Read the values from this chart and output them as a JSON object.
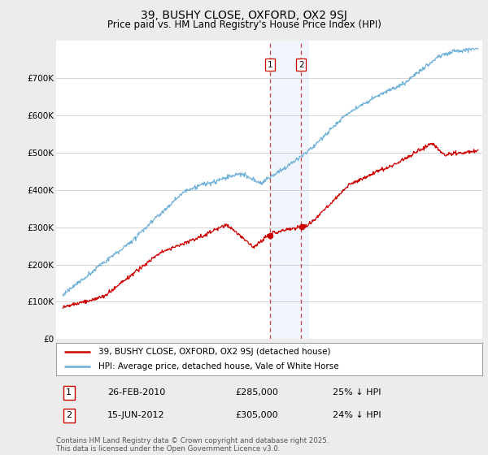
{
  "title": "39, BUSHY CLOSE, OXFORD, OX2 9SJ",
  "subtitle": "Price paid vs. HM Land Registry's House Price Index (HPI)",
  "ylim": [
    0,
    800000
  ],
  "yticks": [
    0,
    100000,
    200000,
    300000,
    400000,
    500000,
    600000,
    700000
  ],
  "ytick_labels": [
    "£0",
    "£100K",
    "£200K",
    "£300K",
    "£400K",
    "£500K",
    "£600K",
    "£700K"
  ],
  "hpi_color": "#6baed6",
  "price_color": "#cc0000",
  "transaction1_year": 2010.15,
  "transaction1_price": 285000,
  "transaction2_year": 2012.45,
  "transaction2_price": 305000,
  "legend_house": "39, BUSHY CLOSE, OXFORD, OX2 9SJ (detached house)",
  "legend_hpi": "HPI: Average price, detached house, Vale of White Horse",
  "table_row1": [
    "1",
    "26-FEB-2010",
    "£285,000",
    "25% ↓ HPI"
  ],
  "table_row2": [
    "2",
    "15-JUN-2012",
    "£305,000",
    "24% ↓ HPI"
  ],
  "footer": "Contains HM Land Registry data © Crown copyright and database right 2025.\nThis data is licensed under the Open Government Licence v3.0.",
  "background_color": "#ececec",
  "plot_bg_color": "#ffffff"
}
